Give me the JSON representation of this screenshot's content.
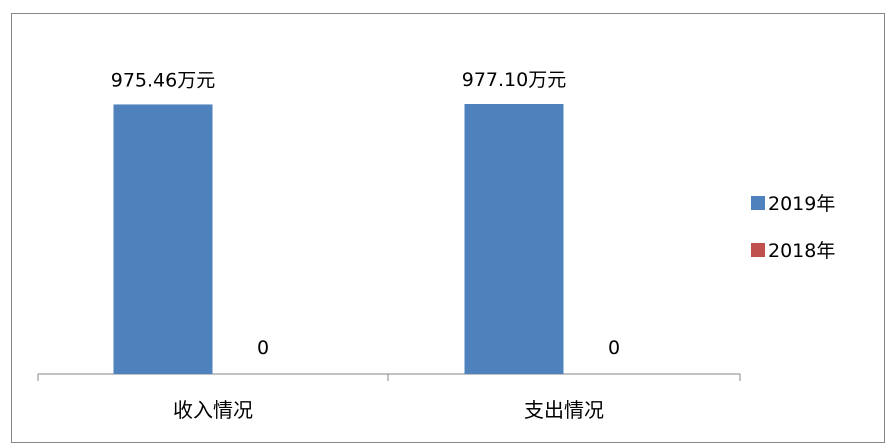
{
  "chart_data": {
    "type": "bar",
    "categories": [
      "收入情况",
      "支出情况"
    ],
    "series": [
      {
        "name": "2019年",
        "values": [
          975.46,
          977.1
        ],
        "color": "#4f81bd",
        "labels": [
          "975.46万元",
          "977.10万元"
        ]
      },
      {
        "name": "2018年",
        "values": [
          0,
          0
        ],
        "color": "#c0504d",
        "labels": [
          "0",
          "0"
        ]
      }
    ],
    "ylim": [
      0,
      1000
    ],
    "grid": false,
    "legend": "right"
  }
}
